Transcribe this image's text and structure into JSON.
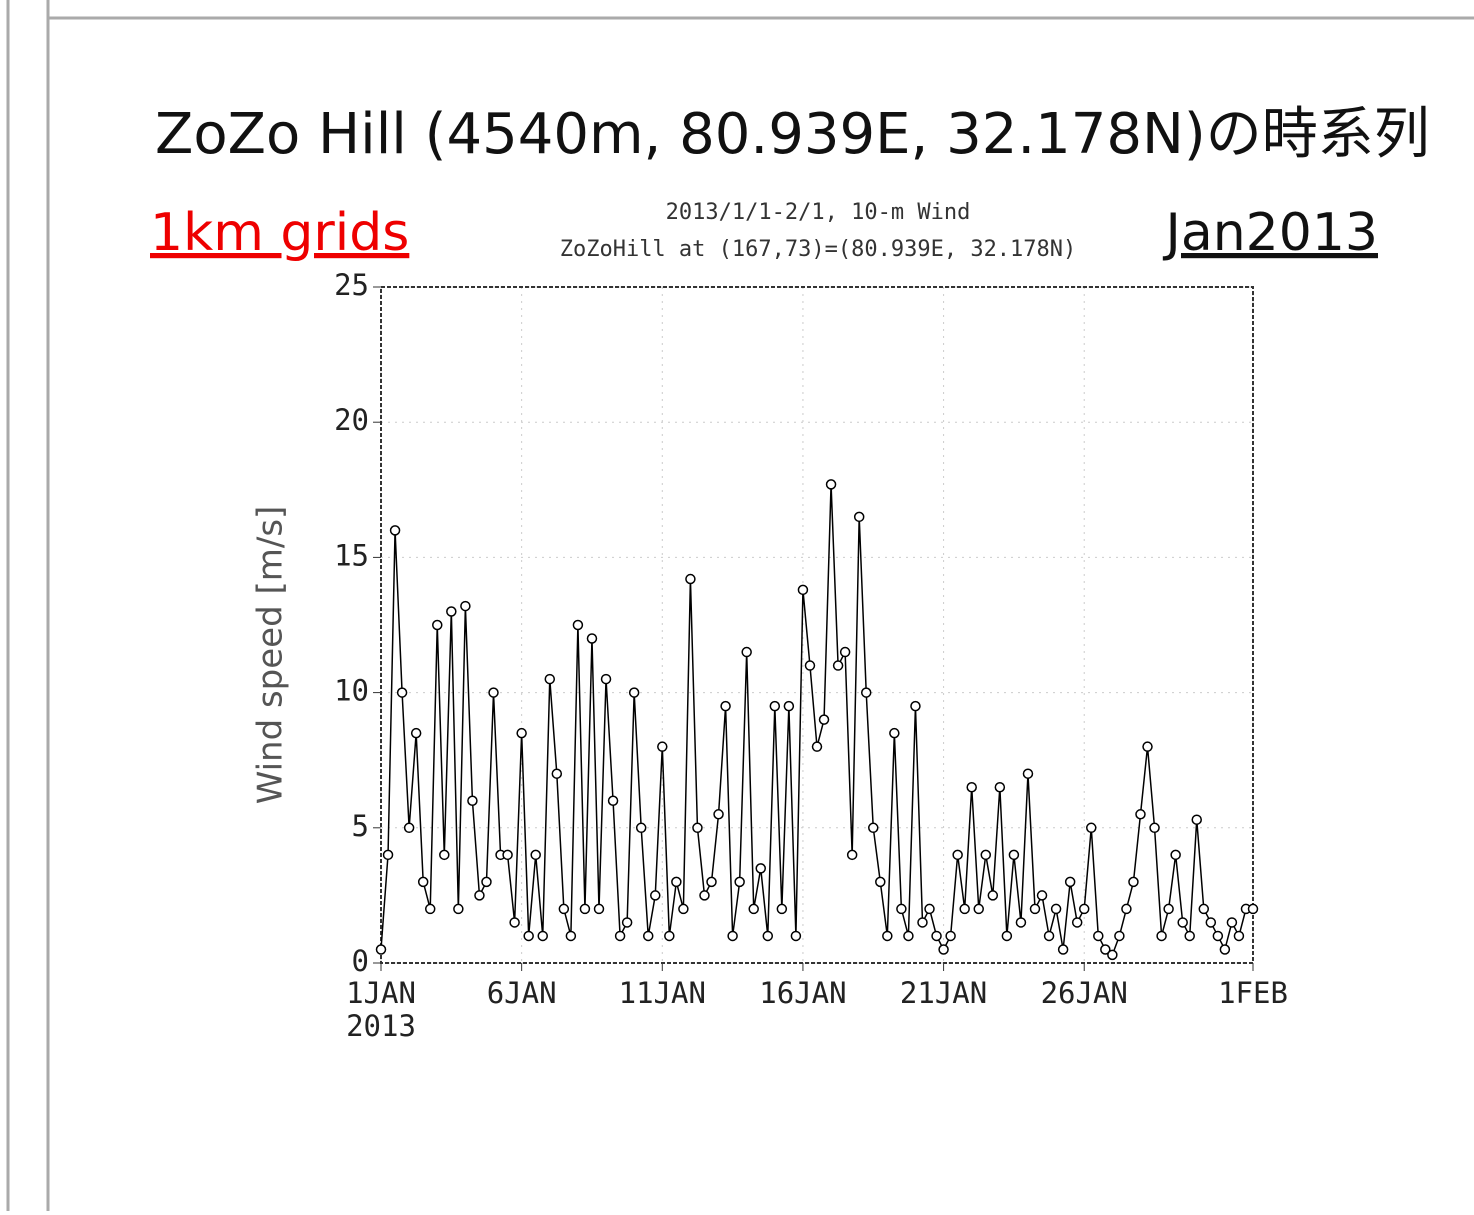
{
  "chart_data": {
    "type": "line",
    "title": "ZoZo Hill (4540m, 80.939E, 32.178N)の時系列",
    "annotation_left": "1km grids",
    "annotation_right": "Jan2013",
    "subtitle": [
      "2013/1/1-2/1, 10-m Wind",
      "ZoZoHill at (167,73)=(80.939E, 32.178N)"
    ],
    "ylabel": "Wind speed [m/s]",
    "x": [
      0,
      0.25,
      0.5,
      0.75,
      1,
      1.25,
      1.5,
      1.75,
      2,
      2.25,
      2.5,
      2.75,
      3,
      3.25,
      3.5,
      3.75,
      4,
      4.25,
      4.5,
      4.75,
      5,
      5.25,
      5.5,
      5.75,
      6,
      6.25,
      6.5,
      6.75,
      7,
      7.25,
      7.5,
      7.75,
      8,
      8.25,
      8.5,
      8.75,
      9,
      9.25,
      9.5,
      9.75,
      10,
      10.25,
      10.5,
      10.75,
      11,
      11.25,
      11.5,
      11.75,
      12,
      12.25,
      12.5,
      12.75,
      13,
      13.25,
      13.5,
      13.75,
      14,
      14.25,
      14.5,
      14.75,
      15,
      15.25,
      15.5,
      15.75,
      16,
      16.25,
      16.5,
      16.75,
      17,
      17.25,
      17.5,
      17.75,
      18,
      18.25,
      18.5,
      18.75,
      19,
      19.25,
      19.5,
      19.75,
      20,
      20.25,
      20.5,
      20.75,
      21,
      21.25,
      21.5,
      21.75,
      22,
      22.25,
      22.5,
      22.75,
      23,
      23.25,
      23.5,
      23.75,
      24,
      24.25,
      24.5,
      24.75,
      25,
      25.25,
      25.5,
      25.75,
      26,
      26.25,
      26.5,
      26.75,
      27,
      27.25,
      27.5,
      27.75,
      28,
      28.25,
      28.5,
      28.75,
      29,
      29.25,
      29.5,
      29.75,
      30,
      30.25,
      30.5,
      30.75,
      31
    ],
    "values": [
      0.5,
      4,
      16,
      10,
      5,
      8.5,
      3,
      2,
      12.5,
      4,
      13,
      2,
      13.2,
      6,
      2.5,
      3,
      10,
      4,
      4,
      1.5,
      8.5,
      1,
      4,
      1,
      10.5,
      7,
      2,
      1,
      12.5,
      2,
      12,
      2,
      10.5,
      6,
      1,
      1.5,
      10,
      5,
      1,
      2.5,
      8,
      1,
      3,
      2,
      14.2,
      5,
      2.5,
      3,
      5.5,
      9.5,
      1,
      3,
      11.5,
      2,
      3.5,
      1,
      9.5,
      2,
      9.5,
      1,
      13.8,
      11,
      8,
      9,
      17.7,
      11,
      11.5,
      4,
      16.5,
      10,
      5,
      3,
      1,
      8.5,
      2,
      1,
      9.5,
      1.5,
      2,
      1,
      0.5,
      1,
      4,
      2,
      6.5,
      2,
      4,
      2.5,
      6.5,
      1,
      4,
      1.5,
      7,
      2,
      2.5,
      1,
      2,
      0.5,
      3,
      1.5,
      2,
      5,
      1,
      0.5,
      0.3,
      1,
      2,
      3,
      5.5,
      8,
      5,
      1,
      2,
      4,
      1.5,
      1,
      5.3,
      2,
      1.5,
      1,
      0.5,
      1.5,
      1,
      2,
      2
    ],
    "color": "#000000",
    "xlim": [
      0,
      31
    ],
    "xticks": [
      {
        "value": 0,
        "label": "1JAN"
      },
      {
        "value": 5,
        "label": "6JAN"
      },
      {
        "value": 10,
        "label": "11JAN"
      },
      {
        "value": 15,
        "label": "16JAN"
      },
      {
        "value": 20,
        "label": "21JAN"
      },
      {
        "value": 25,
        "label": "26JAN"
      },
      {
        "value": 31,
        "label": "1FEB"
      }
    ],
    "xtick_year": "2013",
    "ylim": [
      0,
      25
    ],
    "yticks": [
      0,
      5,
      10,
      15,
      20,
      25
    ],
    "grid": true
  }
}
